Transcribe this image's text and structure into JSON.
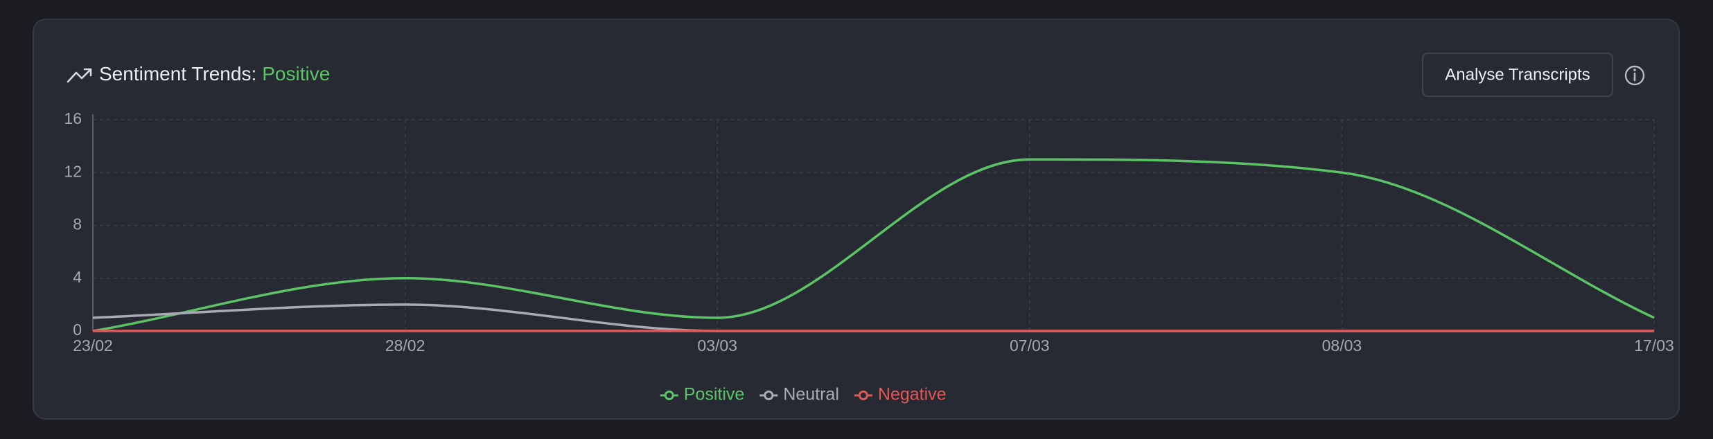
{
  "header": {
    "title": "Sentiment Trends:",
    "title_highlight": "Positive",
    "button": "Analyse Transcripts"
  },
  "chart_data": {
    "type": "line",
    "categories": [
      "23/02",
      "28/02",
      "03/03",
      "07/03",
      "08/03",
      "17/03"
    ],
    "series": [
      {
        "name": "Positive",
        "color": "#5cc466",
        "values": [
          0,
          4,
          1,
          13,
          12,
          1
        ]
      },
      {
        "name": "Neutral",
        "color": "#a9aab5",
        "values": [
          1,
          2,
          0,
          0,
          0,
          0
        ]
      },
      {
        "name": "Negative",
        "color": "#e05757",
        "values": [
          0,
          0,
          0,
          0,
          0,
          0
        ]
      }
    ],
    "ylim": [
      0,
      16
    ],
    "yticks": [
      0,
      4,
      8,
      12,
      16
    ],
    "grid": true,
    "smooth": true,
    "legend": "bottom"
  }
}
